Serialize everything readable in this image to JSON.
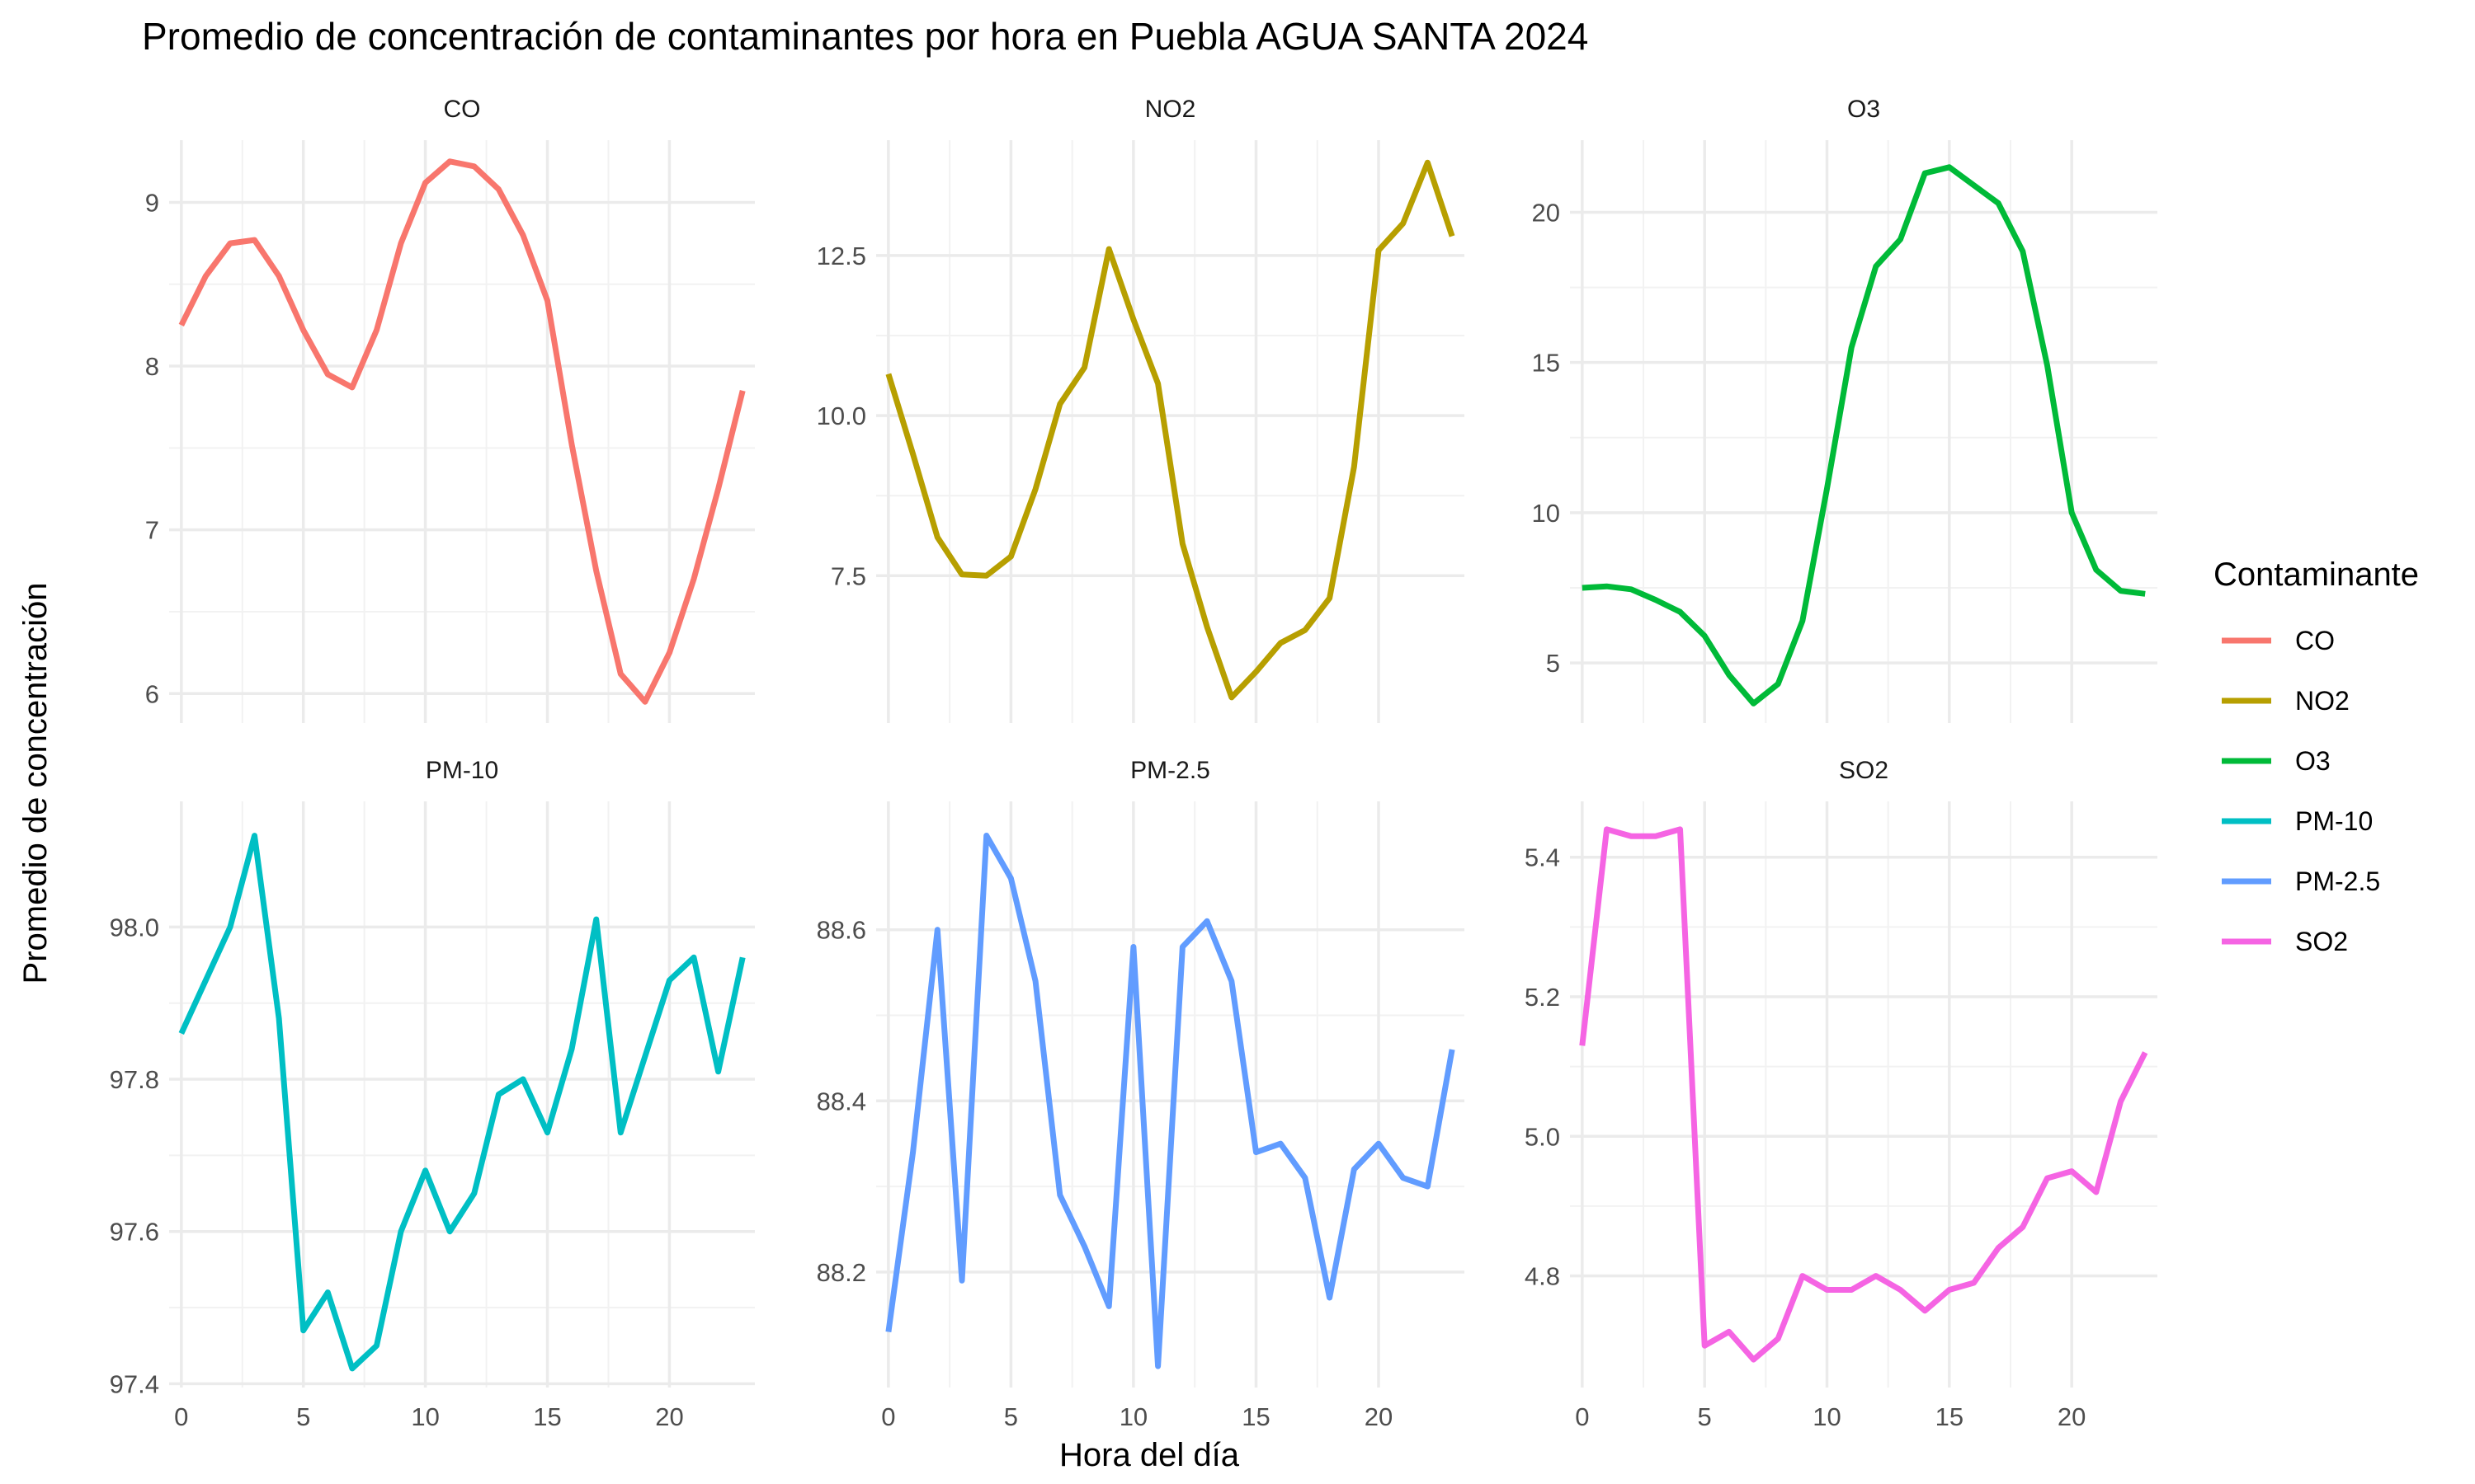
{
  "chart_data": {
    "type": "line",
    "title": "Promedio de concentración de contaminantes por hora en Puebla AGUA SANTA 2024",
    "xlabel": "Hora del día",
    "ylabel": "Promedio de concentración",
    "legend": {
      "title": "Contaminante",
      "position": "right",
      "entries": [
        "CO",
        "NO2",
        "O3",
        "PM-10",
        "PM-2.5",
        "SO2"
      ]
    },
    "grid": true,
    "layout": "facets 3 columns x 2 rows, x shared per column, y free",
    "x": [
      0,
      1,
      2,
      3,
      4,
      5,
      6,
      7,
      8,
      9,
      10,
      11,
      12,
      13,
      14,
      15,
      16,
      17,
      18,
      19,
      20,
      21,
      22,
      23
    ],
    "xticks": [
      0,
      5,
      10,
      15,
      20
    ],
    "xticklabels": [
      "0",
      "5",
      "10",
      "15",
      "20"
    ],
    "xlim": [
      -0.5,
      23.5
    ],
    "panels": [
      {
        "name": "CO",
        "color": "#F8766D",
        "ylim": [
          5.82,
          9.38
        ],
        "yticks": [
          6,
          7,
          8,
          9
        ],
        "yticklabels": [
          "6",
          "7",
          "8",
          "9"
        ],
        "values": [
          8.25,
          8.55,
          8.75,
          8.77,
          8.55,
          8.22,
          7.95,
          7.87,
          8.22,
          8.75,
          9.12,
          9.25,
          9.22,
          9.08,
          8.8,
          8.4,
          7.52,
          6.75,
          6.12,
          5.95,
          6.25,
          6.7,
          7.25,
          7.85
        ]
      },
      {
        "name": "NO2",
        "color": "#B79F00",
        "ylim": [
          5.2,
          14.3
        ],
        "yticks": [
          7.5,
          10.0,
          12.5
        ],
        "yticklabels": [
          "7.5",
          "10.0",
          "12.5"
        ],
        "values": [
          10.65,
          9.4,
          8.1,
          7.52,
          7.5,
          7.8,
          8.85,
          10.18,
          10.75,
          12.6,
          11.5,
          10.5,
          8.0,
          6.7,
          5.6,
          6.0,
          6.45,
          6.65,
          7.15,
          9.2,
          12.58,
          13.0,
          13.95,
          12.8
        ]
      },
      {
        "name": "O3",
        "color": "#00BA38",
        "ylim": [
          3.0,
          22.4
        ],
        "yticks": [
          5,
          10,
          15,
          20
        ],
        "yticklabels": [
          "5",
          "10",
          "15",
          "20"
        ],
        "values": [
          7.5,
          7.55,
          7.45,
          7.1,
          6.7,
          5.9,
          4.6,
          3.65,
          4.3,
          6.4,
          10.8,
          15.5,
          18.2,
          19.1,
          21.3,
          21.5,
          20.9,
          20.3,
          18.7,
          14.9,
          10.0,
          8.1,
          7.4,
          7.3
        ]
      },
      {
        "name": "PM-10",
        "color": "#00BFC4",
        "ylim": [
          97.395,
          98.165
        ],
        "yticks": [
          97.4,
          97.6,
          97.8,
          98.0
        ],
        "yticklabels": [
          "97.4",
          "97.6",
          "97.8",
          "98.0"
        ],
        "values": [
          97.86,
          97.93,
          98.0,
          98.12,
          97.88,
          97.47,
          97.52,
          97.42,
          97.45,
          97.6,
          97.68,
          97.6,
          97.65,
          97.78,
          97.8,
          97.73,
          97.84,
          98.01,
          97.73,
          97.83,
          97.93,
          97.96,
          97.81,
          97.96
        ]
      },
      {
        "name": "PM-2.5",
        "color": "#619CFF",
        "ylim": [
          88.065,
          88.75
        ],
        "yticks": [
          88.2,
          88.4,
          88.6
        ],
        "yticklabels": [
          "88.2",
          "88.4",
          "88.6"
        ],
        "values": [
          88.13,
          88.34,
          88.6,
          88.19,
          88.71,
          88.66,
          88.54,
          88.29,
          88.23,
          88.16,
          88.58,
          88.09,
          88.58,
          88.61,
          88.54,
          88.34,
          88.35,
          88.31,
          88.17,
          88.32,
          88.35,
          88.31,
          88.3,
          88.46
        ]
      },
      {
        "name": "SO2",
        "color": "#F564E3",
        "ylim": [
          4.64,
          5.48
        ],
        "yticks": [
          4.8,
          5.0,
          5.2,
          5.4
        ],
        "yticklabels": [
          "4.8",
          "5.0",
          "5.2",
          "5.4"
        ],
        "values": [
          5.13,
          5.44,
          5.43,
          5.43,
          5.44,
          4.7,
          4.72,
          4.68,
          4.71,
          4.8,
          4.78,
          4.78,
          4.8,
          4.78,
          4.75,
          4.78,
          4.79,
          4.84,
          4.87,
          4.94,
          4.95,
          4.92,
          5.05,
          5.12
        ]
      }
    ]
  }
}
